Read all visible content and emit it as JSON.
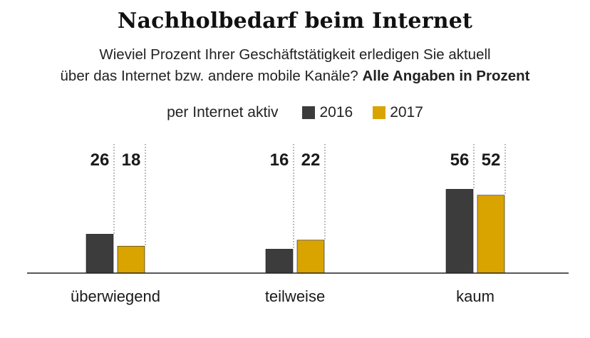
{
  "title": "Nachholbedarf beim Internet",
  "subtitle": {
    "line1": "Wieviel Prozent Ihrer Geschäftstätigkeit erledigen Sie aktuell",
    "line2_regular": "über das Internet bzw. andere mobile Kanäle?",
    "line2_bold": "Alle Angaben in Prozent"
  },
  "legend": {
    "title": "per Internet aktiv"
  },
  "colors": {
    "2016": "#3c3c3c",
    "2017": "#d9a400",
    "baseline": "#222222",
    "guide": "#555555"
  },
  "chart_data": {
    "type": "bar",
    "title": "Nachholbedarf beim Internet",
    "categories": [
      "überwiegend",
      "teilweise",
      "kaum"
    ],
    "series": [
      {
        "name": "2016",
        "values": [
          26,
          16,
          56
        ]
      },
      {
        "name": "2017",
        "values": [
          18,
          22,
          52
        ]
      }
    ],
    "ylabel": "",
    "xlabel": "",
    "ylim": [
      0,
      100
    ],
    "grid": false,
    "legend_position": "top-center"
  }
}
